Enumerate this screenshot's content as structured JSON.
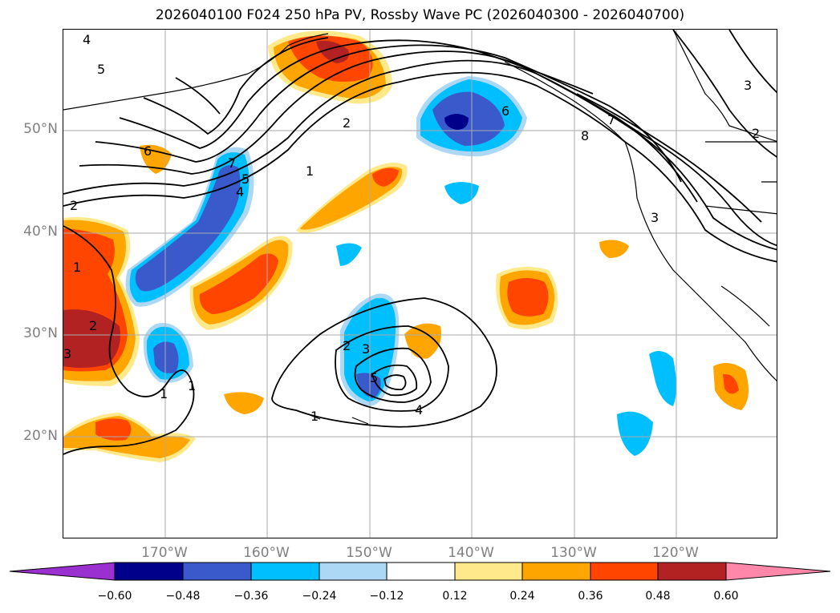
{
  "title": "2026040100 F024 250 hPa PV, Rossby Wave PC (2026040300 - 2026040700)",
  "lat_labels": [
    "50°N",
    "40°N",
    "30°N",
    "20°N"
  ],
  "lon_labels": [
    "170°W",
    "160°W",
    "150°W",
    "140°W",
    "130°W",
    "120°W"
  ],
  "colorbar": {
    "tick_labels": [
      "−0.60",
      "−0.48",
      "−0.36",
      "−0.24",
      "−0.12",
      "0.12",
      "0.24",
      "0.36",
      "0.48",
      "0.60"
    ],
    "colors": [
      "#9b30d0",
      "#00008b",
      "#3a5acb",
      "#00bfff",
      "#add8f5",
      "#ffffff",
      "#ffe98a",
      "#ffa500",
      "#ff4500",
      "#b22222",
      "#ff88aa"
    ]
  },
  "contour_labels": [
    "4",
    "5",
    "6",
    "7",
    "5",
    "4",
    "2",
    "1",
    "8",
    "6",
    "7",
    "3",
    "2",
    "3",
    "1",
    "2",
    "3",
    "1",
    "4",
    "5",
    "3",
    "2",
    "1",
    "1",
    "2"
  ],
  "fill_colors": {
    "pos_weak": "#ffe98a",
    "pos_mid": "#ffa500",
    "pos_strong": "#ff4500",
    "pos_max": "#b22222",
    "neg_weak": "#add8f5",
    "neg_mid": "#00bfff",
    "neg_strong": "#3a5acb",
    "neg_max": "#00008b"
  }
}
